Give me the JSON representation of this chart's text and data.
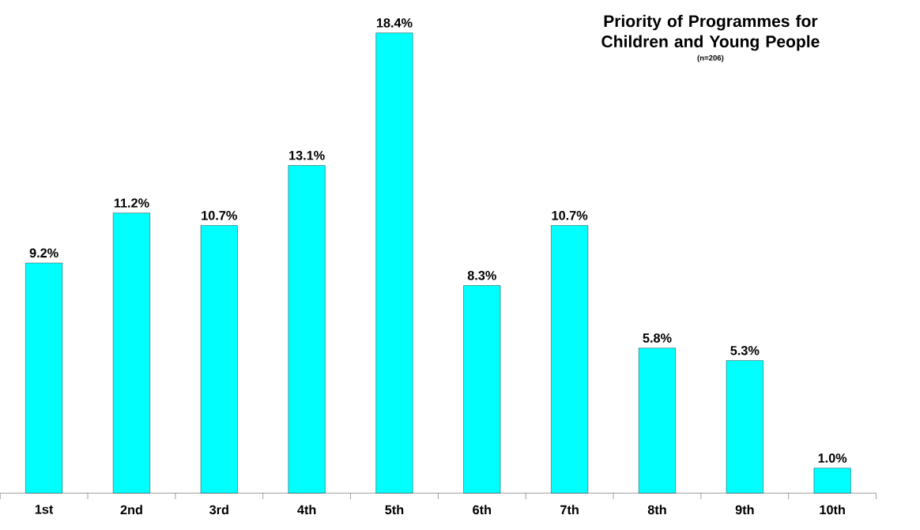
{
  "chart_data": {
    "type": "bar",
    "title": "Priority of Programmes for Children and Young People",
    "subtitle": "(n=206)",
    "categories": [
      "1st",
      "2nd",
      "3rd",
      "4th",
      "5th",
      "6th",
      "7th",
      "8th",
      "9th",
      "10th"
    ],
    "values": [
      9.2,
      11.2,
      10.7,
      13.1,
      18.4,
      8.3,
      10.7,
      5.8,
      5.3,
      1.0
    ],
    "value_labels": [
      "9.2%",
      "11.2%",
      "10.7%",
      "13.1%",
      "18.4%",
      "8.3%",
      "10.7%",
      "5.8%",
      "5.3%",
      "1.0%"
    ],
    "color": "#00ffff"
  }
}
